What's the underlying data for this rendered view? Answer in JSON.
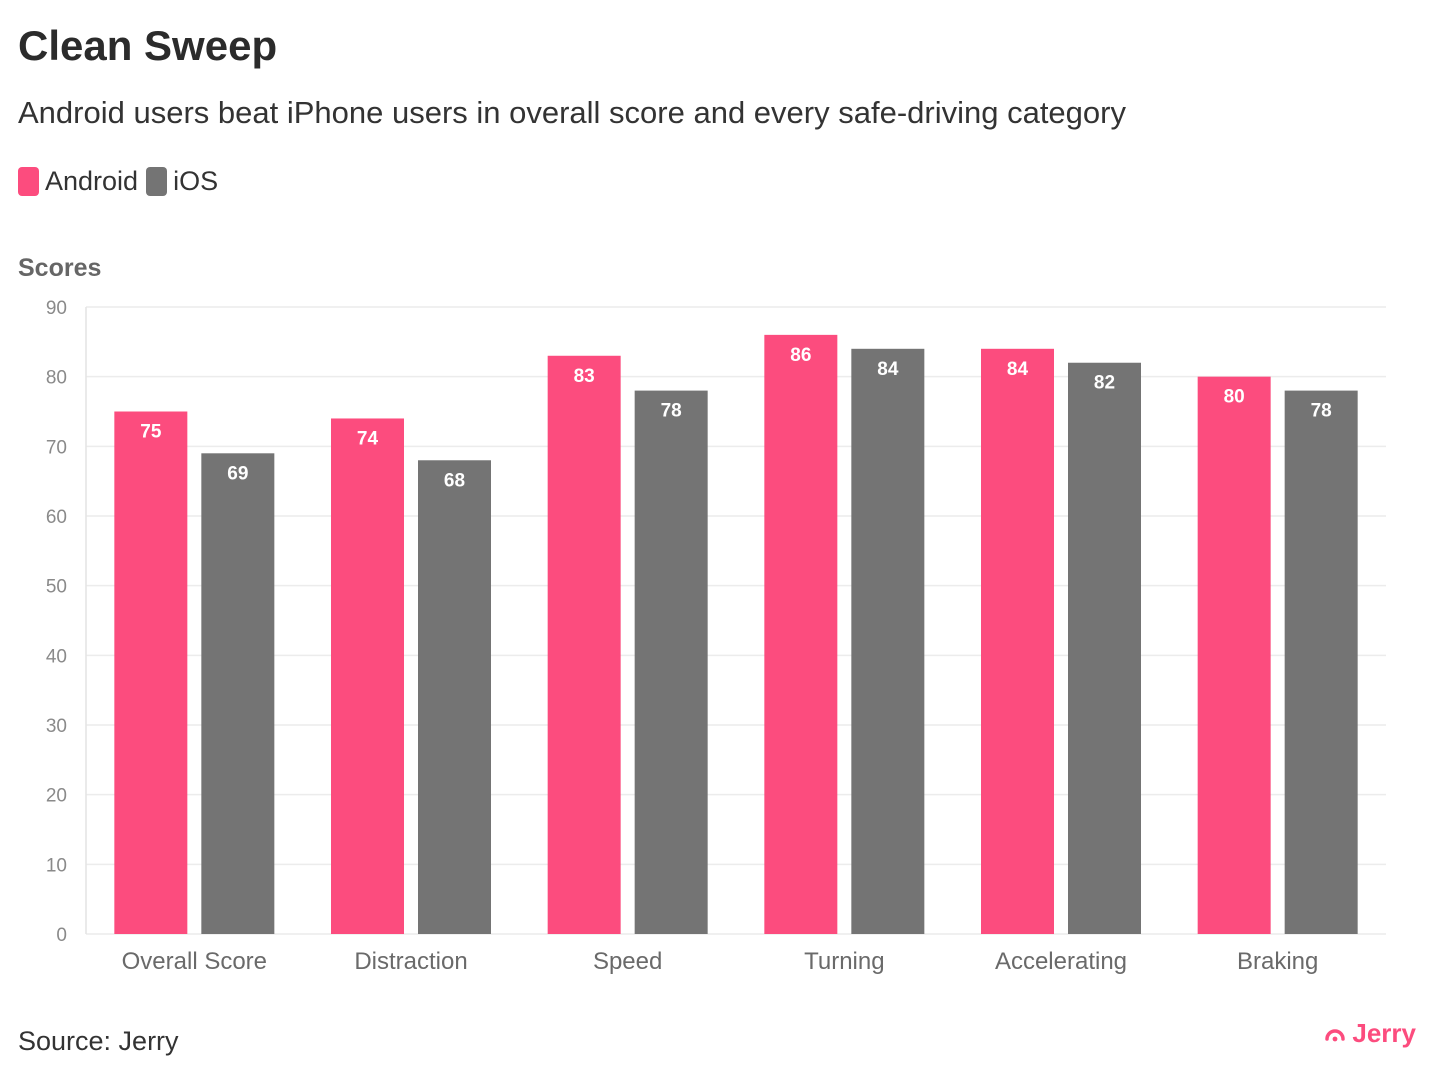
{
  "header": {
    "title": "Clean Sweep",
    "subtitle": "Android users beat iPhone users in overall score and every safe-driving category"
  },
  "legend": [
    {
      "label": "Android",
      "color": "#fc4c7e"
    },
    {
      "label": "iOS",
      "color": "#747474"
    }
  ],
  "footer": {
    "source": "Source: Jerry",
    "brand": "Jerry",
    "brand_color": "#fc4c7e"
  },
  "chart_data": {
    "type": "bar",
    "title": "Clean Sweep",
    "subtitle": "Android users beat iPhone users in overall score and every safe-driving category",
    "xlabel": "",
    "ylabel": "Scores",
    "ylim": [
      0,
      90
    ],
    "yticks": [
      0,
      10,
      20,
      30,
      40,
      50,
      60,
      70,
      80,
      90
    ],
    "grid": true,
    "legend_position": "top-left",
    "categories": [
      "Overall Score",
      "Distraction",
      "Speed",
      "Turning",
      "Accelerating",
      "Braking"
    ],
    "series": [
      {
        "name": "Android",
        "color": "#fc4c7e",
        "values": [
          75,
          74,
          83,
          86,
          84,
          80
        ]
      },
      {
        "name": "iOS",
        "color": "#747474",
        "values": [
          69,
          68,
          78,
          84,
          82,
          78
        ]
      }
    ]
  }
}
